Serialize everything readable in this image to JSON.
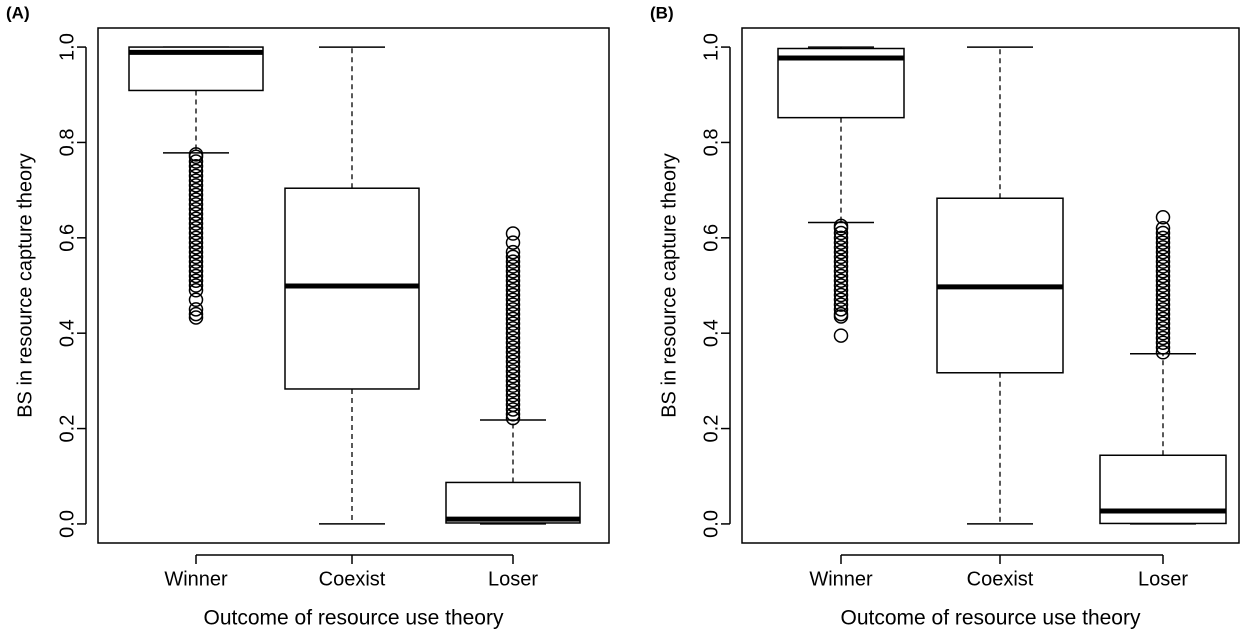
{
  "chart_data": [
    {
      "type": "box",
      "panel": "(A)",
      "xlabel": "Outcome of resource use theory",
      "ylabel": "BS in resource capture theory",
      "categories": [
        "Winner",
        "Coexist",
        "Loser"
      ],
      "ylim": [
        -0.04,
        1.04
      ],
      "yticks": [
        {
          "value": 0,
          "label": "0.0"
        },
        0.2,
        0.4,
        0.6,
        0.8,
        {
          "value": 1,
          "label": "1.0"
        }
      ],
      "boxes": [
        {
          "whisker_low": 0.778,
          "q1": 0.909,
          "median": 0.989,
          "q3": 1.0,
          "whisker_high": 1.0,
          "outliers": [
            0.433,
            0.44,
            0.45,
            0.47,
            0.49,
            0.5,
            0.51,
            0.52,
            0.53,
            0.54,
            0.55,
            0.56,
            0.57,
            0.58,
            0.59,
            0.6,
            0.61,
            0.62,
            0.63,
            0.64,
            0.65,
            0.66,
            0.67,
            0.68,
            0.69,
            0.7,
            0.71,
            0.72,
            0.73,
            0.74,
            0.75,
            0.76,
            0.77,
            0.775
          ]
        },
        {
          "whisker_low": 0,
          "q1": 0.283,
          "median": 0.499,
          "q3": 0.704,
          "whisker_high": 1.0,
          "outliers": []
        },
        {
          "whisker_low": 0,
          "q1": 0.002,
          "median": 0.01,
          "q3": 0.087,
          "whisker_high": 0.218,
          "outliers": [
            0.222,
            0.23,
            0.24,
            0.25,
            0.26,
            0.27,
            0.28,
            0.29,
            0.3,
            0.31,
            0.32,
            0.33,
            0.34,
            0.35,
            0.36,
            0.37,
            0.38,
            0.39,
            0.4,
            0.41,
            0.42,
            0.43,
            0.44,
            0.45,
            0.46,
            0.47,
            0.48,
            0.49,
            0.5,
            0.51,
            0.52,
            0.53,
            0.54,
            0.55,
            0.56,
            0.57,
            0.59,
            0.609
          ]
        }
      ]
    },
    {
      "type": "box",
      "panel": "(B)",
      "xlabel": "Outcome of resource use theory",
      "ylabel": "BS in resource capture theory",
      "categories": [
        "Winner",
        "Coexist",
        "Loser"
      ],
      "ylim": [
        -0.04,
        1.04
      ],
      "yticks": [
        {
          "value": 0,
          "label": "0.0"
        },
        0.2,
        0.4,
        0.6,
        0.8,
        {
          "value": 1,
          "label": "1.0"
        }
      ],
      "boxes": [
        {
          "whisker_low": 0.632,
          "q1": 0.852,
          "median": 0.977,
          "q3": 0.997,
          "whisker_high": 1.0,
          "outliers": [
            0.395,
            0.435,
            0.44,
            0.45,
            0.46,
            0.47,
            0.48,
            0.49,
            0.5,
            0.51,
            0.52,
            0.53,
            0.54,
            0.55,
            0.56,
            0.57,
            0.58,
            0.59,
            0.6,
            0.61,
            0.62,
            0.625
          ]
        },
        {
          "whisker_low": 0,
          "q1": 0.317,
          "median": 0.497,
          "q3": 0.683,
          "whisker_high": 1.0,
          "outliers": []
        },
        {
          "whisker_low": 0,
          "q1": 0.001,
          "median": 0.027,
          "q3": 0.144,
          "whisker_high": 0.357,
          "outliers": [
            0.36,
            0.37,
            0.38,
            0.39,
            0.4,
            0.41,
            0.42,
            0.43,
            0.44,
            0.45,
            0.46,
            0.47,
            0.48,
            0.49,
            0.5,
            0.51,
            0.52,
            0.53,
            0.54,
            0.55,
            0.56,
            0.57,
            0.58,
            0.59,
            0.6,
            0.61,
            0.62,
            0.643
          ]
        }
      ]
    }
  ]
}
